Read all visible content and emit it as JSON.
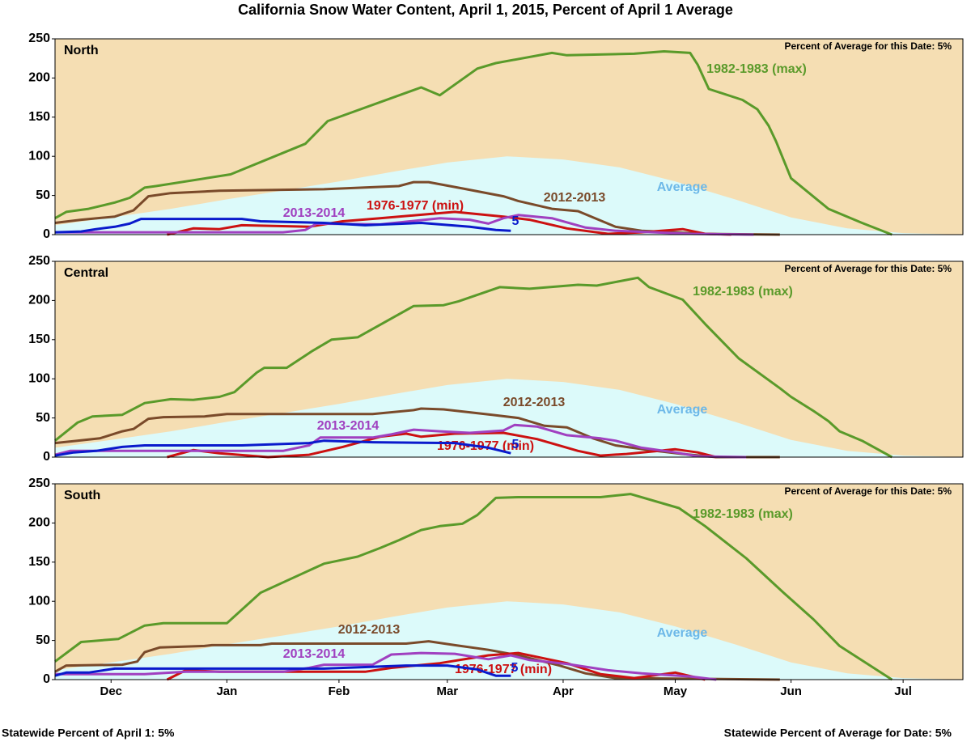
{
  "title": "California Snow Water Content, April 1, 2015, Percent of April 1 Average",
  "footer_left": "Statewide Percent of April 1: 5%",
  "footer_right": "Statewide Percent of Average for Date: 5%",
  "chart_data": [
    {
      "type": "line",
      "region": "North",
      "note": "Percent of Average for this Date: 5%",
      "xlim": [
        0,
        243
      ],
      "ylim": [
        0,
        250
      ],
      "yticks": [
        0,
        50,
        100,
        150,
        200,
        250
      ],
      "background": "#f5deb3",
      "series": [
        {
          "name": "Average",
          "area": true,
          "color": "#dcfafa",
          "label_color": "#6db8e8",
          "x": [
            0,
            15,
            31,
            46,
            62,
            76,
            90,
            105,
            121,
            136,
            151,
            166,
            182,
            197,
            212,
            227,
            243
          ],
          "values": [
            12,
            22,
            33,
            45,
            57,
            68,
            80,
            92,
            100,
            96,
            86,
            68,
            45,
            22,
            8,
            2,
            0
          ]
        },
        {
          "name": "1982-1983 (max)",
          "color": "#5a9a2a",
          "x": [
            0,
            3,
            9,
            16,
            20,
            24,
            27,
            47,
            67,
            73,
            98,
            103,
            113,
            118,
            133,
            137,
            155,
            163,
            170,
            172,
            175,
            184,
            188,
            191,
            193,
            197,
            207,
            216,
            224
          ],
          "values": [
            21,
            29,
            33,
            41,
            47,
            60,
            62,
            77,
            116,
            145,
            188,
            178,
            212,
            219,
            232,
            229,
            231,
            234,
            232,
            217,
            186,
            172,
            160,
            139,
            119,
            72,
            33,
            15,
            0
          ]
        },
        {
          "name": "2012-2013",
          "color": "#7a4a2a",
          "x": [
            0,
            7,
            16,
            21,
            25,
            31,
            44,
            72,
            92,
            96,
            100,
            109,
            120,
            124,
            133,
            140,
            150,
            157,
            174,
            194
          ],
          "values": [
            15,
            19,
            23,
            31,
            49,
            53,
            56,
            58,
            62,
            67,
            67,
            59,
            49,
            43,
            33,
            30,
            10,
            5,
            1,
            0
          ]
        },
        {
          "name": "1976-1977 (min)",
          "color": "#cc1111",
          "x": [
            30,
            37,
            44,
            50,
            68,
            77,
            87,
            107,
            120,
            127,
            137,
            148,
            157,
            168,
            174,
            181
          ],
          "values": [
            0,
            8,
            7,
            12,
            10,
            17,
            21,
            29,
            23,
            19,
            8,
            1,
            3,
            7,
            1,
            0
          ]
        },
        {
          "name": "2013-2014",
          "color": "#a040c0",
          "x": [
            0,
            29,
            61,
            67,
            70,
            87,
            103,
            111,
            116,
            120,
            124,
            133,
            142,
            150,
            170,
            187
          ],
          "values": [
            3,
            3,
            3,
            6,
            14,
            13,
            21,
            19,
            14,
            21,
            25,
            21,
            9,
            5,
            1,
            0
          ]
        },
        {
          "name": "5",
          "color": "#0a1acc",
          "x": [
            0,
            7,
            11,
            16,
            20,
            23,
            50,
            55,
            72,
            83,
            98,
            111,
            118,
            122
          ],
          "values": [
            3,
            4,
            7,
            10,
            14,
            20,
            20,
            17,
            15,
            12,
            15,
            10,
            6,
            5
          ]
        }
      ]
    },
    {
      "type": "line",
      "region": "Central",
      "note": "Percent of Average for this Date: 5%",
      "xlim": [
        0,
        243
      ],
      "ylim": [
        0,
        250
      ],
      "yticks": [
        0,
        50,
        100,
        150,
        200,
        250
      ],
      "background": "#f5deb3",
      "series": [
        {
          "name": "Average",
          "area": true,
          "color": "#dcfafa",
          "label_color": "#6db8e8",
          "x": [
            0,
            15,
            31,
            46,
            62,
            76,
            90,
            105,
            121,
            136,
            151,
            166,
            182,
            197,
            212,
            227,
            243
          ],
          "values": [
            12,
            22,
            33,
            45,
            57,
            68,
            80,
            92,
            100,
            96,
            86,
            68,
            45,
            22,
            8,
            2,
            0
          ]
        },
        {
          "name": "1982-1983 (max)",
          "color": "#5a9a2a",
          "x": [
            0,
            6,
            10,
            18,
            24,
            31,
            37,
            44,
            48,
            54,
            56,
            62,
            69,
            74,
            81,
            96,
            104,
            108,
            119,
            127,
            140,
            145,
            156,
            159,
            168,
            174,
            183,
            194,
            197,
            203,
            207,
            210,
            216,
            224
          ],
          "values": [
            21,
            44,
            52,
            54,
            69,
            74,
            73,
            77,
            83,
            108,
            114,
            114,
            136,
            150,
            153,
            193,
            194,
            199,
            217,
            215,
            220,
            219,
            229,
            217,
            201,
            170,
            126,
            88,
            77,
            59,
            46,
            33,
            21,
            0
          ]
        },
        {
          "name": "2012-2013",
          "color": "#7a4a2a",
          "x": [
            0,
            6,
            12,
            18,
            21,
            25,
            29,
            40,
            46,
            70,
            85,
            96,
            98,
            104,
            117,
            124,
            131,
            137,
            144,
            150,
            159,
            168,
            177,
            194
          ],
          "values": [
            18,
            21,
            24,
            33,
            36,
            49,
            51,
            52,
            55,
            55,
            55,
            60,
            62,
            61,
            54,
            50,
            40,
            38,
            24,
            15,
            9,
            4,
            0,
            0
          ]
        },
        {
          "name": "1976-1977 (min)",
          "color": "#cc1111",
          "x": [
            30,
            37,
            44,
            57,
            68,
            77,
            87,
            94,
            98,
            107,
            120,
            129,
            140,
            146,
            153,
            166,
            172,
            177
          ],
          "values": [
            0,
            9,
            5,
            0,
            3,
            13,
            26,
            30,
            26,
            30,
            31,
            23,
            8,
            2,
            4,
            10,
            6,
            0
          ]
        },
        {
          "name": "2013-2014",
          "color": "#a040c0",
          "x": [
            0,
            4,
            61,
            68,
            71,
            85,
            90,
            96,
            103,
            111,
            120,
            123,
            129,
            137,
            146,
            150,
            157,
            166,
            172,
            185
          ],
          "values": [
            3,
            8,
            8,
            15,
            25,
            25,
            29,
            35,
            33,
            31,
            34,
            41,
            39,
            28,
            24,
            21,
            12,
            6,
            1,
            0
          ]
        },
        {
          "name": "5",
          "color": "#0a1acc",
          "x": [
            0,
            5,
            11,
            18,
            24,
            50,
            68,
            72,
            85,
            107,
            116,
            122
          ],
          "values": [
            2,
            6,
            8,
            13,
            15,
            15,
            18,
            21,
            19,
            18,
            12,
            5
          ]
        }
      ]
    },
    {
      "type": "line",
      "region": "South",
      "note": "Percent of Average for this Date: 5%",
      "xlim": [
        0,
        243
      ],
      "ylim": [
        0,
        250
      ],
      "yticks": [
        0,
        50,
        100,
        150,
        200,
        250
      ],
      "background": "#f5deb3",
      "xticks": [
        {
          "value": 15,
          "label": "Dec"
        },
        {
          "value": 46,
          "label": "Jan"
        },
        {
          "value": 76,
          "label": "Feb"
        },
        {
          "value": 105,
          "label": "Mar"
        },
        {
          "value": 136,
          "label": "Apr"
        },
        {
          "value": 166,
          "label": "May"
        },
        {
          "value": 197,
          "label": "Jun"
        },
        {
          "value": 227,
          "label": "Jul"
        }
      ],
      "series": [
        {
          "name": "Average",
          "area": true,
          "color": "#dcfafa",
          "label_color": "#6db8e8",
          "x": [
            0,
            15,
            31,
            46,
            62,
            76,
            90,
            105,
            121,
            136,
            151,
            166,
            182,
            197,
            212,
            227,
            243
          ],
          "values": [
            12,
            22,
            33,
            45,
            57,
            68,
            80,
            92,
            100,
            96,
            86,
            68,
            45,
            22,
            8,
            2,
            0
          ]
        },
        {
          "name": "1982-1983 (max)",
          "color": "#5a9a2a",
          "x": [
            0,
            7,
            17,
            24,
            29,
            46,
            55,
            72,
            81,
            87,
            92,
            98,
            103,
            109,
            113,
            118,
            124,
            146,
            154,
            167,
            174,
            185,
            195,
            203,
            210,
            224
          ],
          "values": [
            23,
            48,
            52,
            69,
            72,
            72,
            111,
            148,
            157,
            168,
            178,
            191,
            196,
            199,
            210,
            232,
            233,
            233,
            237,
            219,
            196,
            155,
            111,
            77,
            43,
            0
          ]
        },
        {
          "name": "2012-2013",
          "color": "#7a4a2a",
          "x": [
            0,
            3,
            18,
            22,
            24,
            28,
            40,
            42,
            55,
            58,
            72,
            94,
            100,
            107,
            116,
            124,
            135,
            142,
            150,
            194
          ],
          "values": [
            10,
            18,
            19,
            23,
            35,
            41,
            43,
            44,
            44,
            46,
            46,
            46,
            49,
            44,
            38,
            31,
            18,
            8,
            2,
            0
          ]
        },
        {
          "name": "1976-1977 (min)",
          "color": "#cc1111",
          "x": [
            30,
            35,
            44,
            61,
            83,
            90,
            103,
            116,
            124,
            137,
            146,
            155,
            166,
            174
          ],
          "values": [
            0,
            12,
            10,
            10,
            10,
            15,
            21,
            31,
            34,
            21,
            7,
            2,
            9,
            0
          ]
        },
        {
          "name": "2013-2014",
          "color": "#a040c0",
          "x": [
            0,
            24,
            35,
            50,
            61,
            68,
            72,
            85,
            90,
            98,
            107,
            116,
            122,
            127,
            137,
            148,
            157,
            170,
            177
          ],
          "values": [
            7,
            7,
            10,
            10,
            10,
            15,
            19,
            19,
            32,
            34,
            33,
            26,
            31,
            25,
            20,
            12,
            8,
            4,
            0
          ]
        },
        {
          "name": "5",
          "color": "#0a1acc",
          "x": [
            0,
            3,
            9,
            16,
            50,
            72,
            94,
            105,
            113,
            118,
            122
          ],
          "values": [
            5,
            9,
            9,
            14,
            14,
            14,
            18,
            18,
            13,
            5,
            5
          ]
        }
      ]
    }
  ]
}
